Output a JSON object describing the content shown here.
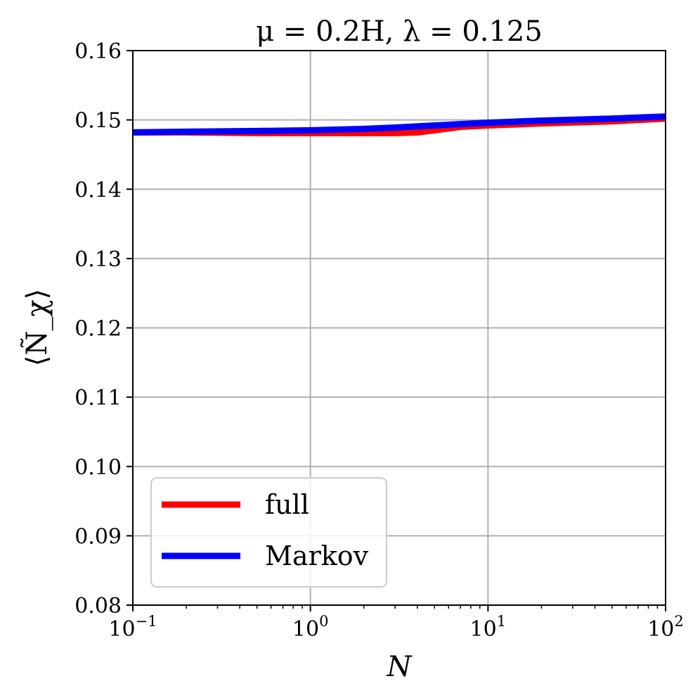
{
  "chart_data": {
    "type": "line",
    "title": "μ = 0.2H,  λ = 0.125",
    "xlabel": "N",
    "ylabel": "⟨Ñ_χ⟩",
    "x_scale": "log",
    "xlim": [
      0.1,
      100
    ],
    "ylim": [
      0.08,
      0.16
    ],
    "grid": true,
    "legend_position": "lower-left",
    "x_ticks": [
      {
        "value": 0.1,
        "base": "10",
        "exp": "−1"
      },
      {
        "value": 1,
        "base": "10",
        "exp": "0"
      },
      {
        "value": 10,
        "base": "10",
        "exp": "1"
      },
      {
        "value": 100,
        "base": "10",
        "exp": "2"
      }
    ],
    "y_ticks": [
      {
        "value": 0.08,
        "label": "0.08"
      },
      {
        "value": 0.09,
        "label": "0.09"
      },
      {
        "value": 0.1,
        "label": "0.10"
      },
      {
        "value": 0.11,
        "label": "0.11"
      },
      {
        "value": 0.12,
        "label": "0.12"
      },
      {
        "value": 0.13,
        "label": "0.13"
      },
      {
        "value": 0.14,
        "label": "0.14"
      },
      {
        "value": 0.15,
        "label": "0.15"
      },
      {
        "value": 0.16,
        "label": "0.16"
      }
    ],
    "series": [
      {
        "name": "full",
        "color": "#ff0000",
        "x": [
          0.1,
          0.2,
          0.5,
          1,
          2,
          3,
          4,
          5,
          7,
          10,
          20,
          50,
          100
        ],
        "y": [
          0.1482,
          0.1482,
          0.1481,
          0.1481,
          0.1481,
          0.1481,
          0.1482,
          0.1485,
          0.149,
          0.1492,
          0.1495,
          0.1498,
          0.1502
        ]
      },
      {
        "name": "Markov",
        "color": "#0000ff",
        "x": [
          0.1,
          0.2,
          0.5,
          1,
          2,
          3,
          5,
          10,
          20,
          50,
          100
        ],
        "y": [
          0.1482,
          0.1483,
          0.1484,
          0.1485,
          0.1487,
          0.1489,
          0.1492,
          0.1496,
          0.1499,
          0.1502,
          0.1505
        ]
      }
    ]
  }
}
